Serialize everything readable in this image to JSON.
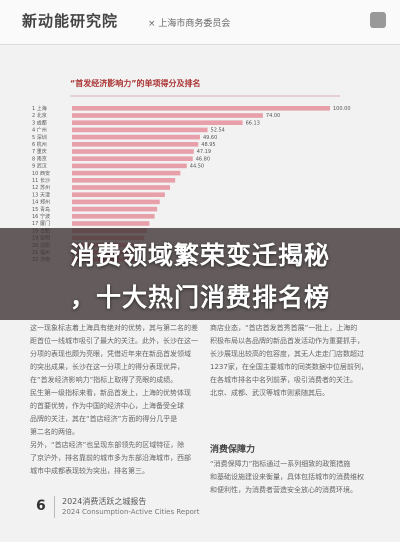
{
  "header": {
    "logo": "新动能研究院",
    "partner": "× 上海市商务委员会"
  },
  "chart_data": {
    "type": "bar",
    "orientation": "horizontal",
    "title": "“首发经济影响力”的单项得分及排名",
    "categories": [
      "1 上海",
      "2 北京",
      "3 成都",
      "4 广州",
      "5 深圳",
      "6 杭州",
      "7 重庆",
      "8 南京",
      "9 武汉",
      "10 西安",
      "11 长沙",
      "12 苏州",
      "13 天津",
      "14 郑州",
      "15 青岛",
      "16 宁波",
      "17 厦门",
      "18 合肥",
      "19 昆明",
      "20 沈阳",
      "21 福州",
      "22 济南"
    ],
    "values": [
      100,
      74,
      66.13,
      52.54,
      49.6,
      48.95,
      47.19,
      46.8,
      44.5,
      42,
      40,
      38,
      36,
      34,
      33,
      32,
      30,
      29,
      28,
      27,
      26,
      25
    ],
    "value_labels": [
      "100.00",
      "74.00",
      "66.13",
      "52.54",
      "49.60",
      "48.95",
      "47.19",
      "46.80",
      "44.50",
      null,
      null,
      null,
      null,
      null,
      null,
      null,
      null,
      null,
      null,
      null,
      null,
      null
    ],
    "color": "#e7a0aa",
    "xlim": [
      0,
      100
    ]
  },
  "overlay": {
    "lines": [
      "消费领域繁荣变迁揭秘",
      "，十大热门消费排名榜"
    ]
  },
  "body": {
    "left": [
      "这一现象标志着上海具有绝对的优势，其与第二名的差",
      "距首位一线城市吸引了最大的关注。此外，长沙在这一",
      "分项的表现也颇为亮眼，凭借近年来在新品首发领域",
      "的突出成果，长沙在这一分项上的得分表现优异，",
      "在“首发经济影响力”指标上取得了亮眼的成绩。",
      "民生第一级指标来看，新品首发上，上海的优势体现",
      "的首要优势，作为中国的经济中心，上海备受全球",
      "品牌的关注，其在“首店经济”方面的得分几乎是",
      "第二名的两倍。",
      "另外，“首店经济”也呈现东部领先的区域特征，除",
      "了京沪外，排名靠前的城市多为东部沿海城市，西部",
      "城市中成都表现较为突出，排名第三。"
    ],
    "right": [
      "商店业态，“首店首发首秀首展”一批上，上海的",
      "积极布局以各品牌的新品首发活动作为重要抓手，",
      "长沙展现出较高的包容度，其无人走走门店数超过",
      "1237家，在全国主要城市的同类数据中位居前列，",
      "在各城市排名中名列前茅，吸引消费者的关注。",
      "北京、成都、武汉等城市则紧随其后。"
    ],
    "section_heading": "消费保障力",
    "right2": [
      "“消费保障力”指标通过一系列细致的政策措施",
      "和基础设施建设来衡量，具体包括城市的消费维权",
      "和便利性，为消费者营造安全放心的消费环境。"
    ]
  },
  "footer": {
    "page": "6",
    "title": "2024消费活跃之城报告",
    "subtitle": "2024 Consumption-Active Cities Report"
  }
}
